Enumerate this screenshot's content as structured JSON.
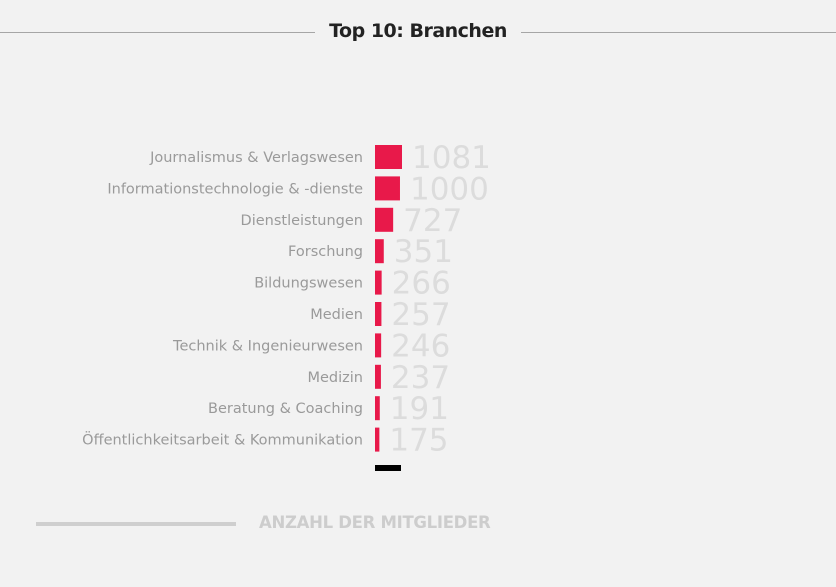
{
  "chart_data": {
    "type": "bar",
    "orientation": "horizontal",
    "title": "Top 10: Branchen",
    "categories": [
      "Journalismus & Verlagswesen",
      "Informationstechnologie & -dienste",
      "Dienstleistungen",
      "Forschung",
      "Bildungswesen",
      "Medien",
      "Technik & Ingenieurwesen",
      "Medizin",
      "Beratung & Coaching",
      "Öffentlichkeitsarbeit & Kommunikation"
    ],
    "values": [
      1081,
      1000,
      727,
      351,
      266,
      257,
      246,
      237,
      191,
      175
    ],
    "bar_color": "#e8194a",
    "legend": "ANZAHL DER MITGLIEDER",
    "xlim": [
      0,
      1081
    ]
  }
}
